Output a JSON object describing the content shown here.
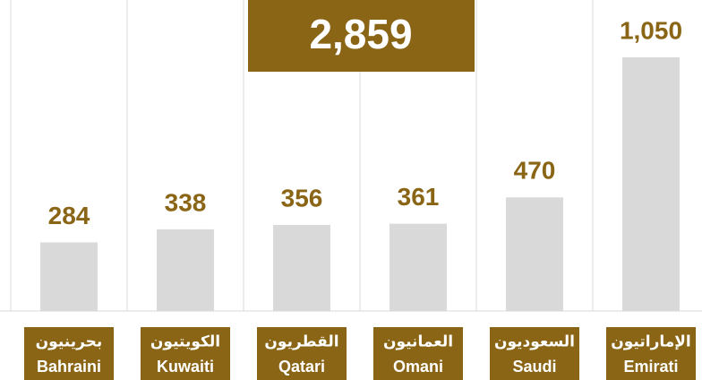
{
  "chart_data": {
    "type": "bar",
    "categories": [
      "Bahraini",
      "Kuwaiti",
      "Qatari",
      "Omani",
      "Saudi",
      "Emirati"
    ],
    "categories_ar": [
      "بحرينيون",
      "الكويتيون",
      "القطريون",
      "العمانيون",
      "السعوديون",
      "الإماراتيون"
    ],
    "values": [
      284,
      338,
      356,
      361,
      470,
      1050
    ],
    "value_labels": [
      "284",
      "338",
      "356",
      "361",
      "470",
      "1,050"
    ],
    "color": "#d9d9d9",
    "label_color": "#8a6516",
    "box_color": "#8a6516",
    "ylim": [
      0,
      1250
    ],
    "grid": true,
    "annotation": "2,859"
  }
}
